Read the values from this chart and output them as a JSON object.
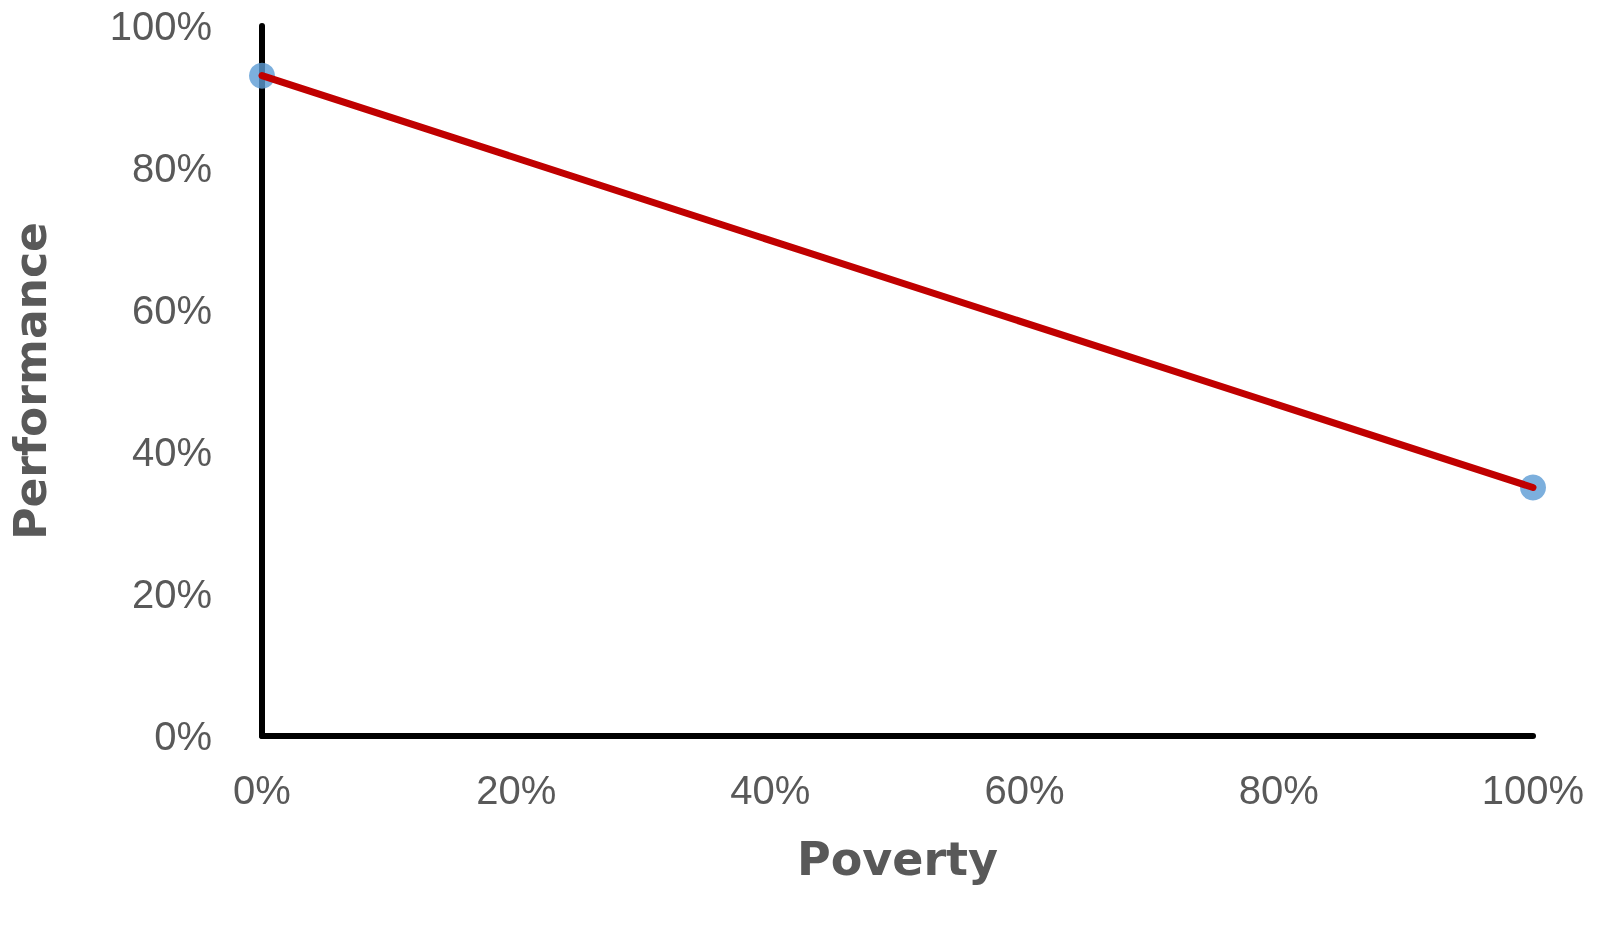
{
  "chart_data": {
    "type": "line",
    "xlabel": "Poverty",
    "ylabel": "Performance",
    "x": [
      0,
      100
    ],
    "series": [
      {
        "color": "#c00000",
        "values": [
          93,
          35
        ],
        "marker": "none"
      },
      {
        "type": "scatter",
        "color": "#5b9bd5",
        "values": [
          93,
          35
        ],
        "marker": "circle"
      }
    ],
    "xlim": [
      0,
      100
    ],
    "ylim": [
      0,
      100
    ],
    "xticks": [
      {
        "value": 0,
        "label": "0%"
      },
      {
        "value": 20,
        "label": "20%"
      },
      {
        "value": 40,
        "label": "40%"
      },
      {
        "value": 60,
        "label": "60%"
      },
      {
        "value": 80,
        "label": "80%"
      },
      {
        "value": 100,
        "label": "100%"
      }
    ],
    "yticks": [
      {
        "value": 0,
        "label": "0%"
      },
      {
        "value": 20,
        "label": "20%"
      },
      {
        "value": 40,
        "label": "40%"
      },
      {
        "value": 60,
        "label": "60%"
      },
      {
        "value": 80,
        "label": "80%"
      },
      {
        "value": 100,
        "label": "100%"
      }
    ],
    "grid": false
  }
}
